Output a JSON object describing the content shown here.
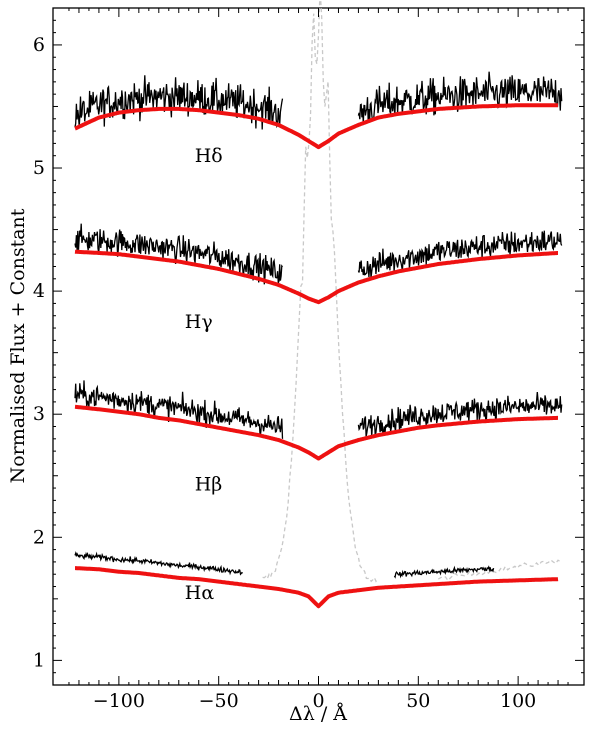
{
  "chart_data": {
    "type": "line",
    "xlabel": "Δλ / Å",
    "ylabel": "Normalised Flux + Constant",
    "xlim": [
      -133,
      133
    ],
    "ylim": [
      0.8,
      6.3
    ],
    "xticks": [
      -100,
      -50,
      0,
      50,
      100
    ],
    "yticks": [
      1,
      2,
      3,
      4,
      5,
      6
    ],
    "grid": false,
    "legend": "none",
    "colors": {
      "observed": "#000000",
      "model": "#ee1111",
      "masked": "#c8c8c8"
    },
    "annotations": [
      {
        "text": "Hδ",
        "x": -62,
        "y": 5.05
      },
      {
        "text": "Hγ",
        "x": -67,
        "y": 3.7
      },
      {
        "text": "Hβ",
        "x": -62,
        "y": 2.38
      },
      {
        "text": "Hα",
        "x": -67,
        "y": 1.5
      }
    ],
    "series": [
      {
        "line": "Hδ",
        "model": {
          "x": [
            -122,
            -110,
            -100,
            -90,
            -80,
            -70,
            -60,
            -50,
            -40,
            -30,
            -20,
            -10,
            -5,
            0,
            5,
            10,
            20,
            30,
            40,
            50,
            60,
            80,
            100,
            120
          ],
          "y": [
            5.32,
            5.41,
            5.45,
            5.47,
            5.48,
            5.48,
            5.47,
            5.45,
            5.43,
            5.4,
            5.35,
            5.27,
            5.22,
            5.17,
            5.22,
            5.28,
            5.35,
            5.41,
            5.44,
            5.46,
            5.48,
            5.5,
            5.51,
            5.51
          ]
        },
        "observed": {
          "segments": [
            [
              -122,
              -18
            ],
            [
              20,
              122
            ]
          ],
          "noise": 0.14
        }
      },
      {
        "line": "Hγ",
        "model": {
          "x": [
            -122,
            -110,
            -100,
            -90,
            -80,
            -70,
            -60,
            -50,
            -40,
            -30,
            -20,
            -10,
            -5,
            0,
            5,
            10,
            20,
            30,
            40,
            50,
            60,
            80,
            100,
            120
          ],
          "y": [
            4.32,
            4.31,
            4.3,
            4.28,
            4.26,
            4.24,
            4.21,
            4.18,
            4.14,
            4.1,
            4.05,
            3.98,
            3.94,
            3.91,
            3.95,
            4.0,
            4.07,
            4.12,
            4.16,
            4.19,
            4.22,
            4.26,
            4.29,
            4.31
          ]
        },
        "observed": {
          "segments": [
            [
              -122,
              -18
            ],
            [
              20,
              122
            ]
          ],
          "noise": 0.1
        }
      },
      {
        "line": "Hβ",
        "model": {
          "x": [
            -122,
            -110,
            -100,
            -90,
            -80,
            -70,
            -60,
            -50,
            -40,
            -30,
            -20,
            -10,
            -5,
            0,
            5,
            10,
            20,
            30,
            40,
            50,
            60,
            80,
            100,
            120
          ],
          "y": [
            3.06,
            3.04,
            3.02,
            3.0,
            2.97,
            2.95,
            2.92,
            2.89,
            2.86,
            2.83,
            2.79,
            2.73,
            2.69,
            2.64,
            2.69,
            2.74,
            2.79,
            2.83,
            2.86,
            2.89,
            2.91,
            2.94,
            2.96,
            2.97
          ]
        },
        "observed": {
          "segments": [
            [
              -122,
              -18
            ],
            [
              20,
              122
            ]
          ],
          "noise": 0.09
        }
      },
      {
        "line": "Hα",
        "model": {
          "x": [
            -122,
            -110,
            -100,
            -90,
            -80,
            -70,
            -60,
            -50,
            -40,
            -30,
            -20,
            -10,
            -5,
            0,
            5,
            10,
            20,
            30,
            40,
            50,
            60,
            80,
            100,
            120
          ],
          "y": [
            1.75,
            1.74,
            1.72,
            1.71,
            1.69,
            1.67,
            1.66,
            1.64,
            1.62,
            1.6,
            1.58,
            1.55,
            1.52,
            1.44,
            1.52,
            1.55,
            1.57,
            1.59,
            1.6,
            1.61,
            1.62,
            1.64,
            1.65,
            1.66
          ]
        },
        "observed": {
          "segments": [
            [
              -122,
              -38
            ],
            [
              38,
              88
            ]
          ],
          "noise": 0.02
        }
      }
    ]
  }
}
